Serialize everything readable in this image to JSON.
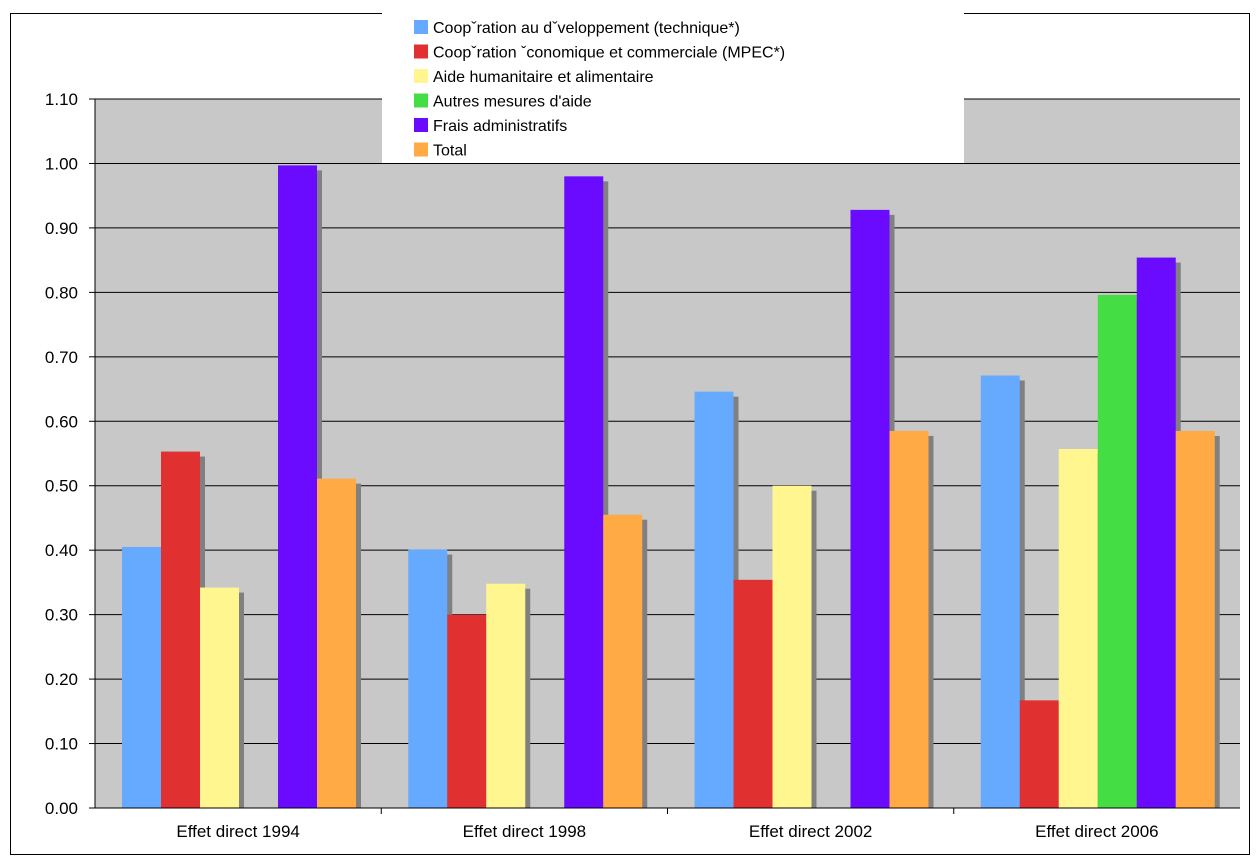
{
  "chart_data": {
    "type": "bar",
    "categories": [
      "Effet direct 1994",
      "Effet direct 1998",
      "Effet direct 2002",
      "Effet direct 2006"
    ],
    "series": [
      {
        "name": "Coopˇration au dˇveloppement (technique*)",
        "color": "#66aaff",
        "values": [
          0.405,
          0.401,
          0.646,
          0.671
        ]
      },
      {
        "name": "Coopˇration ˇconomique et commerciale (MPEC*)",
        "color": "#e03030",
        "values": [
          0.553,
          0.3,
          0.354,
          0.167
        ]
      },
      {
        "name": "Aide humanitaire et alimentaire",
        "color": "#fff68f",
        "values": [
          0.342,
          0.348,
          0.5,
          0.557
        ]
      },
      {
        "name": "Autres mesures d'aide",
        "color": "#44dd44",
        "values": [
          null,
          null,
          null,
          0.796
        ]
      },
      {
        "name": "Frais administratifs",
        "color": "#6a0aff",
        "values": [
          0.997,
          0.98,
          0.928,
          0.854
        ]
      },
      {
        "name": "Total",
        "color": "#ffaa44",
        "values": [
          0.511,
          0.455,
          0.585,
          0.585
        ]
      }
    ],
    "ylim": [
      0.0,
      1.1
    ],
    "yticks": [
      "0.00",
      "0.10",
      "0.20",
      "0.30",
      "0.40",
      "0.50",
      "0.60",
      "0.70",
      "0.80",
      "0.90",
      "1.00",
      "1.10"
    ],
    "grid": true,
    "legend_position": "top-center",
    "plot_background": "#c8c8c8",
    "shadow_color": "#808080"
  }
}
